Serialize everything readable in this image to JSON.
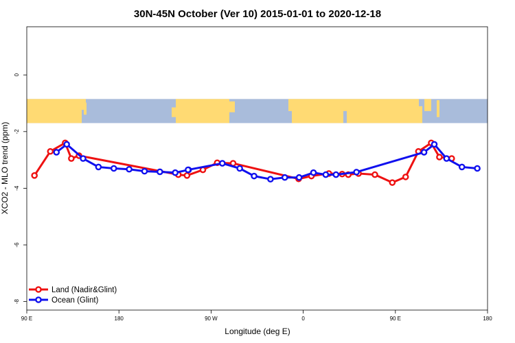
{
  "chart_data": {
    "type": "line",
    "title": "30N-45N October (Ver 10)   2015-01-01 to 2020-12-18",
    "xlabel": "Longitude (deg E)",
    "ylabel": "XCO2 - MLO trend (ppm)",
    "xlim": [
      90,
      540
    ],
    "ylim": [
      -8.3,
      1.7
    ],
    "x_ticks": [
      {
        "value": 90,
        "label": "90 E"
      },
      {
        "value": 180,
        "label": "180"
      },
      {
        "value": 270,
        "label": "90 W"
      },
      {
        "value": 360,
        "label": "0"
      },
      {
        "value": 450,
        "label": "90 E"
      },
      {
        "value": 540,
        "label": "180"
      }
    ],
    "y_ticks": [
      {
        "value": 0,
        "label": "0"
      },
      {
        "value": -2,
        "label": "-2"
      },
      {
        "value": -4,
        "label": "-4"
      },
      {
        "value": -6,
        "label": "-6"
      },
      {
        "value": -8,
        "label": "-8"
      }
    ],
    "map_band": {
      "ymin": -1.7,
      "ymax": -0.85,
      "ocean_color": "#a9bcdb",
      "land_color": "#ffda73"
    },
    "legend": {
      "position": "bottom-left"
    },
    "series": [
      {
        "name": "Land (Nadir&Glint)",
        "color": "#ee1111",
        "x": [
          97.5,
          113,
          127.5,
          133.5,
          141,
          238,
          246.5,
          262,
          276,
          291.5,
          355.5,
          368,
          385,
          398,
          404,
          414,
          430,
          447,
          460,
          472.5,
          485,
          493,
          505
        ],
        "y": [
          -3.55,
          -2.7,
          -2.4,
          -2.95,
          -2.85,
          -3.52,
          -3.55,
          -3.35,
          -3.1,
          -3.12,
          -3.67,
          -3.57,
          -3.48,
          -3.5,
          -3.52,
          -3.48,
          -3.52,
          -3.8,
          -3.6,
          -2.7,
          -2.4,
          -2.9,
          -2.95
        ]
      },
      {
        "name": "Ocean (Glint)",
        "color": "#1010ee",
        "x": [
          119,
          129,
          145,
          160,
          175,
          190,
          205,
          220,
          235,
          248,
          247.5,
          281,
          298,
          312,
          328,
          342,
          356,
          370,
          382,
          392,
          412,
          478,
          488,
          500,
          515,
          530
        ],
        "y": [
          -2.73,
          -2.45,
          -2.95,
          -3.25,
          -3.3,
          -3.33,
          -3.4,
          -3.42,
          -3.45,
          -3.35,
          -3.35,
          -3.12,
          -3.3,
          -3.57,
          -3.68,
          -3.62,
          -3.62,
          -3.45,
          -3.52,
          -3.52,
          -3.43,
          -2.73,
          -2.45,
          -2.95,
          -3.25,
          -3.3
        ]
      }
    ]
  }
}
